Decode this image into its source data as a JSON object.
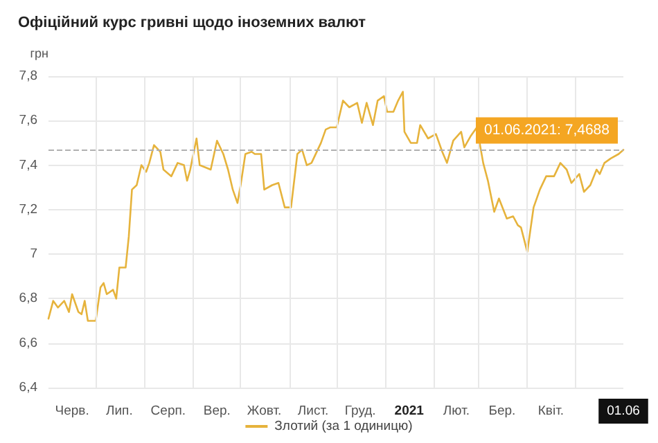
{
  "chart_data": {
    "type": "line",
    "title": "Офіційний курс гривні щодо іноземних валют",
    "ylabel": "грн",
    "x": [
      "2020-06-01",
      "2020-06-04",
      "2020-06-07",
      "2020-06-11",
      "2020-06-14",
      "2020-06-16",
      "2020-06-20",
      "2020-06-22",
      "2020-06-24",
      "2020-06-26",
      "2020-06-28",
      "2020-07-01",
      "2020-07-04",
      "2020-07-06",
      "2020-07-08",
      "2020-07-12",
      "2020-07-14",
      "2020-07-16",
      "2020-07-20",
      "2020-07-22",
      "2020-07-24",
      "2020-07-27",
      "2020-07-30",
      "2020-08-02",
      "2020-08-04",
      "2020-08-07",
      "2020-08-11",
      "2020-08-13",
      "2020-08-18",
      "2020-08-22",
      "2020-08-26",
      "2020-08-28",
      "2020-08-30",
      "2020-09-03",
      "2020-09-05",
      "2020-09-12",
      "2020-09-16",
      "2020-09-20",
      "2020-09-23",
      "2020-09-26",
      "2020-09-29",
      "2020-10-01",
      "2020-10-04",
      "2020-10-08",
      "2020-10-10",
      "2020-10-14",
      "2020-10-16",
      "2020-10-21",
      "2020-10-25",
      "2020-10-29",
      "2020-11-02",
      "2020-11-06",
      "2020-11-09",
      "2020-11-12",
      "2020-11-15",
      "2020-11-21",
      "2020-11-24",
      "2020-11-27",
      "2020-12-01",
      "2020-12-05",
      "2020-12-09",
      "2020-12-14",
      "2020-12-17",
      "2020-12-20",
      "2020-12-24",
      "2020-12-27",
      "2020-12-31",
      "2021-01-02",
      "2021-01-06",
      "2021-01-09",
      "2021-01-12",
      "2021-01-13",
      "2021-01-17",
      "2021-01-21",
      "2021-01-23",
      "2021-01-28",
      "2021-02-02",
      "2021-02-06",
      "2021-02-09",
      "2021-02-13",
      "2021-02-18",
      "2021-02-20",
      "2021-02-24",
      "2021-02-28",
      "2021-03-04",
      "2021-03-07",
      "2021-03-11",
      "2021-03-14",
      "2021-03-19",
      "2021-03-23",
      "2021-03-26",
      "2021-03-28",
      "2021-04-01",
      "2021-04-05",
      "2021-04-09",
      "2021-04-13",
      "2021-04-18",
      "2021-04-22",
      "2021-04-26",
      "2021-04-29",
      "2021-05-04",
      "2021-05-07",
      "2021-05-11",
      "2021-05-15",
      "2021-05-17",
      "2021-05-20",
      "2021-05-24",
      "2021-05-29",
      "2021-06-01"
    ],
    "series": [
      {
        "name": "Злотий (за 1 одиницю)",
        "color": "#e6b33c",
        "values": [
          6.71,
          6.79,
          6.76,
          6.79,
          6.74,
          6.82,
          6.74,
          6.73,
          6.79,
          6.7,
          6.7,
          6.7,
          6.85,
          6.87,
          6.82,
          6.84,
          6.8,
          6.94,
          6.94,
          7.08,
          7.29,
          7.31,
          7.4,
          7.37,
          7.41,
          7.49,
          7.46,
          7.38,
          7.35,
          7.41,
          7.4,
          7.33,
          7.38,
          7.52,
          7.4,
          7.38,
          7.51,
          7.45,
          7.38,
          7.29,
          7.23,
          7.31,
          7.45,
          7.46,
          7.45,
          7.45,
          7.29,
          7.31,
          7.32,
          7.21,
          7.21,
          7.45,
          7.47,
          7.4,
          7.41,
          7.5,
          7.56,
          7.57,
          7.57,
          7.69,
          7.66,
          7.68,
          7.59,
          7.68,
          7.58,
          7.69,
          7.71,
          7.64,
          7.64,
          7.69,
          7.73,
          7.55,
          7.5,
          7.5,
          7.58,
          7.52,
          7.54,
          7.46,
          7.41,
          7.51,
          7.55,
          7.48,
          7.53,
          7.57,
          7.41,
          7.33,
          7.19,
          7.25,
          7.16,
          7.17,
          7.13,
          7.12,
          7.01,
          7.21,
          7.29,
          7.35,
          7.35,
          7.41,
          7.38,
          7.32,
          7.36,
          7.28,
          7.31,
          7.38,
          7.36,
          7.41,
          7.43,
          7.45,
          7.4688
        ]
      }
    ],
    "xlim": [
      "2020-06-01",
      "2021-06-01"
    ],
    "xticks": [
      {
        "value": "2020-06-16",
        "label": "Черв."
      },
      {
        "value": "2020-07-01",
        "label": null
      },
      {
        "value": "2020-07-16",
        "label": "Лип."
      },
      {
        "value": "2020-08-01",
        "label": null
      },
      {
        "value": "2020-08-16",
        "label": "Серп."
      },
      {
        "value": "2020-09-01",
        "label": null
      },
      {
        "value": "2020-09-16",
        "label": "Вер."
      },
      {
        "value": "2020-10-01",
        "label": null
      },
      {
        "value": "2020-10-16",
        "label": "Жовт."
      },
      {
        "value": "2020-11-01",
        "label": null
      },
      {
        "value": "2020-11-16",
        "label": "Лист."
      },
      {
        "value": "2020-12-01",
        "label": null
      },
      {
        "value": "2020-12-16",
        "label": "Груд."
      },
      {
        "value": "2021-01-01",
        "label": null
      },
      {
        "value": "2021-01-16",
        "label": "2021"
      },
      {
        "value": "2021-02-01",
        "label": null
      },
      {
        "value": "2021-02-15",
        "label": "Лют."
      },
      {
        "value": "2021-03-01",
        "label": null
      },
      {
        "value": "2021-03-16",
        "label": "Бер."
      },
      {
        "value": "2021-04-01",
        "label": null
      },
      {
        "value": "2021-04-16",
        "label": "Квіт."
      },
      {
        "value": "2021-05-01",
        "label": null
      },
      {
        "value": "2021-06-01",
        "label": "01.06"
      }
    ],
    "ylim": [
      6.4,
      7.8
    ],
    "yticks": [
      {
        "value": 6.4,
        "label": "6,4"
      },
      {
        "value": 6.6,
        "label": "6,6"
      },
      {
        "value": 6.8,
        "label": "6,8"
      },
      7,
      {
        "value": 7.2,
        "label": "7,2"
      },
      {
        "value": 7.4,
        "label": "7,4"
      },
      {
        "value": 7.6,
        "label": "7,6"
      },
      {
        "value": 7.8,
        "label": "7,8"
      }
    ],
    "ref_lines": [
      {
        "axis": "y",
        "value": 7.4688,
        "color": "#b0b0b0",
        "line_style": "dashed"
      }
    ],
    "annotations": [
      {
        "text": "01.06.2021: 7,4688",
        "x": "2021-06-01",
        "y": 7.4688
      }
    ],
    "grid": true,
    "legend": "bottom",
    "marker": "none",
    "line_style": "solid"
  }
}
